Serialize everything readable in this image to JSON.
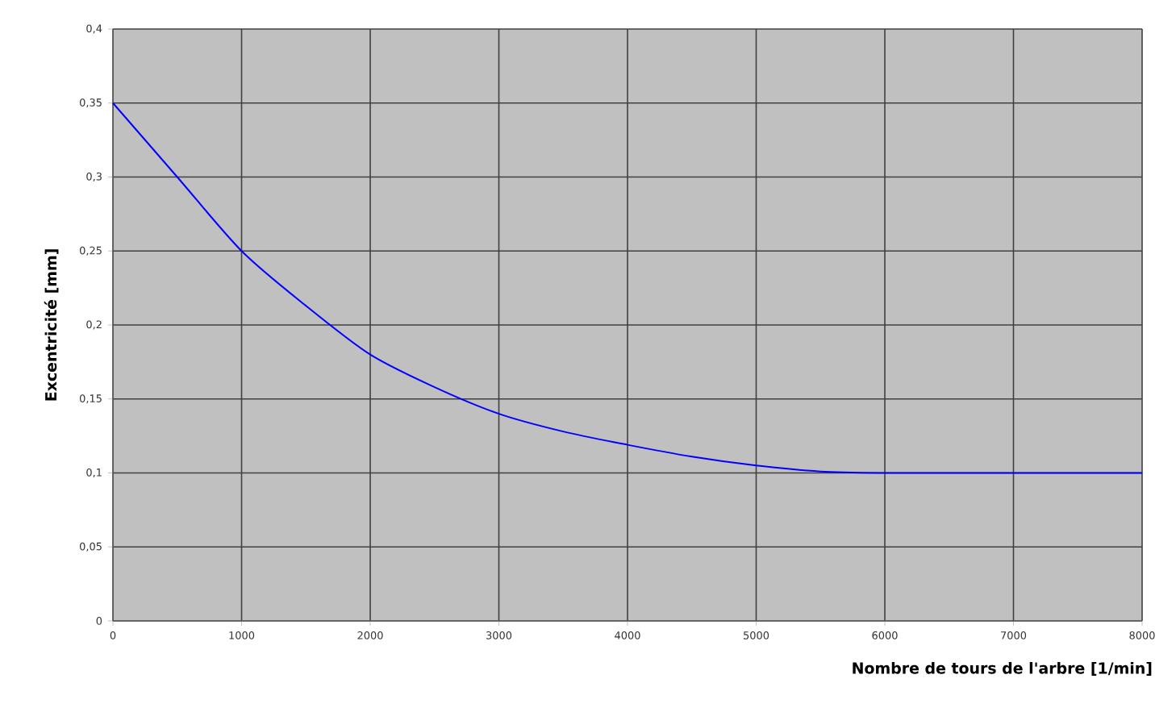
{
  "chart_data": {
    "type": "line",
    "xlabel": "Nombre de tours de l'arbre [1/min]",
    "ylabel": "Excentricité [mm]",
    "x": [
      0,
      500,
      1000,
      1500,
      2000,
      2500,
      3000,
      3500,
      4000,
      4500,
      5000,
      5500,
      6000,
      6500,
      7000,
      7500,
      8000
    ],
    "series": [
      {
        "color": "#0000ff",
        "values": [
          0.35,
          0.3,
          0.25,
          0.213,
          0.18,
          0.158,
          0.14,
          0.128,
          0.119,
          0.111,
          0.105,
          0.101,
          0.1,
          0.1,
          0.1,
          0.1,
          0.1
        ]
      }
    ],
    "xlim": [
      0,
      8000
    ],
    "ylim": [
      0,
      0.4
    ],
    "xticks": [
      0,
      1000,
      2000,
      3000,
      4000,
      5000,
      6000,
      7000,
      8000
    ],
    "yticks": [
      0,
      {
        "value": 0.05,
        "label": "0,05"
      },
      {
        "value": 0.1,
        "label": "0,1"
      },
      {
        "value": 0.15,
        "label": "0,15"
      },
      {
        "value": 0.2,
        "label": "0,2"
      },
      {
        "value": 0.25,
        "label": "0,25"
      },
      {
        "value": 0.3,
        "label": "0,3"
      },
      {
        "value": 0.35,
        "label": "0,35"
      },
      {
        "value": 0.4,
        "label": "0,4"
      }
    ],
    "grid": true
  }
}
